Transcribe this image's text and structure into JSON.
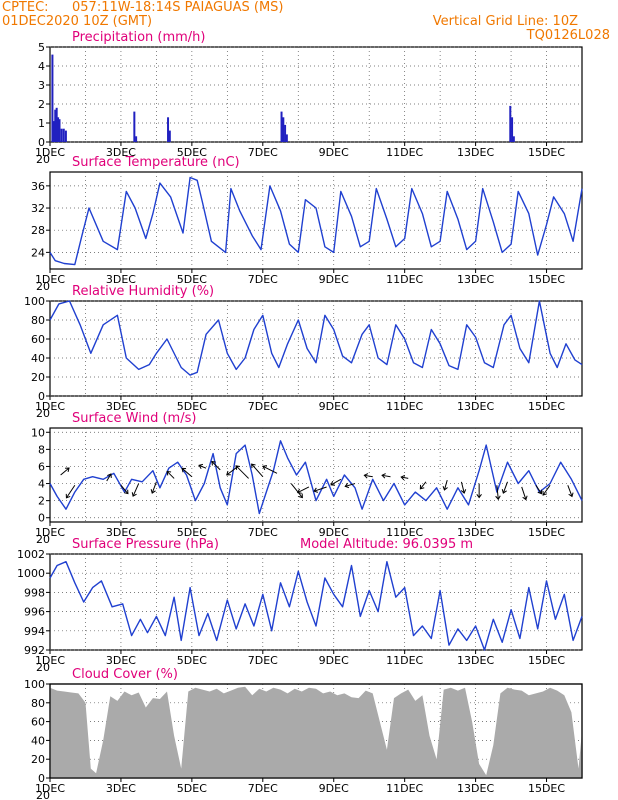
{
  "header": {
    "source": "CPTEC:",
    "location": "057:11W-18:14S  PAIAGUAS (MS)",
    "init_time": "01DEC2020 10Z (GMT)",
    "grid_note": "Vertical Grid Line: 10Z",
    "code": "TQ0126L028"
  },
  "colors": {
    "header": "#f07800",
    "title": "#e0007a",
    "line": "#2040d0",
    "bar": "#2020c0",
    "cloud": "#aaaaaa"
  },
  "x_ticks": [
    "1DEC",
    "3DEC",
    "5DEC",
    "7DEC",
    "9DEC",
    "11DEC",
    "13DEC",
    "15DEC"
  ],
  "x_tick_sub": "20",
  "chart_data": [
    {
      "id": "precipitation",
      "type": "bar",
      "title": "Precipitation (mm/h)",
      "xlabel": "",
      "ylabel": "",
      "ylim": [
        0,
        5
      ],
      "yticks": [
        "0",
        "1",
        "2",
        "3",
        "4",
        "5"
      ],
      "x_unit": "days since 01DEC2020 10Z",
      "x": [
        0.04,
        0.08,
        0.12,
        0.16,
        0.2,
        0.24,
        0.3,
        0.36,
        0.42,
        2.35,
        2.4,
        3.3,
        3.35,
        6.5,
        6.55,
        6.6,
        6.65,
        12.95,
        13.0,
        13.05
      ],
      "values": [
        4.6,
        1.1,
        1.7,
        1.8,
        1.3,
        1.2,
        0.7,
        0.7,
        0.6,
        1.6,
        0.3,
        1.3,
        0.6,
        1.6,
        1.3,
        0.9,
        0.4,
        1.9,
        1.3,
        0.3
      ],
      "grid": true
    },
    {
      "id": "temperature",
      "type": "line",
      "title": "Surface Temperature (nC)",
      "ylim": [
        21,
        38.5
      ],
      "yticks": [
        "24",
        "28",
        "32",
        "36"
      ],
      "series": [
        {
          "x": [
            0,
            0.15,
            0.4,
            0.7,
            0.9,
            1.1,
            1.5,
            1.9,
            2.15,
            2.4,
            2.7,
            2.9,
            3.1,
            3.4,
            3.75,
            3.95,
            4.15,
            4.3,
            4.55,
            4.95,
            5.1,
            5.35,
            5.7,
            5.95,
            6.2,
            6.5,
            6.75,
            7.0,
            7.2,
            7.5,
            7.75,
            8.0,
            8.2,
            8.5,
            8.75,
            9.0,
            9.2,
            9.5,
            9.75,
            10.0,
            10.2,
            10.5,
            10.75,
            11.0,
            11.2,
            11.5,
            11.75,
            12.0,
            12.2,
            12.5,
            12.75,
            13.0,
            13.2,
            13.5,
            13.75,
            14.0,
            14.2,
            14.5,
            14.75,
            15.0
          ],
          "values": [
            24,
            22.5,
            22.0,
            21.8,
            27.0,
            32.0,
            26.0,
            24.5,
            35.0,
            32.0,
            26.5,
            31.0,
            36.5,
            34.0,
            27.5,
            37.5,
            37.0,
            33.0,
            26.0,
            24.0,
            35.5,
            31.5,
            27.0,
            24.5,
            36.0,
            31.5,
            25.5,
            24.0,
            33.5,
            32.0,
            25.0,
            24.0,
            35.0,
            30.5,
            25.0,
            26.0,
            35.5,
            30.0,
            25.0,
            26.5,
            35.5,
            31.0,
            25.0,
            26.0,
            35.0,
            30.0,
            24.5,
            26.0,
            35.5,
            29.5,
            24.0,
            25.5,
            35.0,
            31.0,
            23.5,
            29.0,
            34.0,
            31.0,
            26.0,
            35.5
          ]
        }
      ],
      "grid": true
    },
    {
      "id": "humidity",
      "type": "line",
      "title": "Relative Humidity (%)",
      "ylim": [
        0,
        100
      ],
      "yticks": [
        "0",
        "20",
        "40",
        "60",
        "80",
        "100"
      ],
      "series": [
        {
          "x": [
            0,
            0.25,
            0.55,
            0.85,
            1.15,
            1.5,
            1.9,
            2.15,
            2.5,
            2.8,
            3.0,
            3.3,
            3.7,
            3.95,
            4.15,
            4.4,
            4.75,
            5.0,
            5.25,
            5.5,
            5.75,
            6.0,
            6.25,
            6.45,
            6.7,
            7.0,
            7.25,
            7.5,
            7.75,
            8.0,
            8.25,
            8.5,
            8.8,
            9.0,
            9.25,
            9.5,
            9.75,
            10.0,
            10.25,
            10.5,
            10.75,
            11.0,
            11.25,
            11.5,
            11.75,
            12.0,
            12.25,
            12.5,
            12.8,
            13.0,
            13.25,
            13.5,
            13.8,
            14.1,
            14.3,
            14.55,
            14.8,
            15.0
          ],
          "values": [
            80,
            97,
            100,
            75,
            45,
            75,
            85,
            40,
            28,
            33,
            45,
            60,
            30,
            22,
            25,
            65,
            80,
            45,
            28,
            40,
            70,
            85,
            45,
            30,
            55,
            80,
            50,
            35,
            85,
            70,
            42,
            35,
            65,
            75,
            40,
            33,
            75,
            60,
            35,
            30,
            70,
            55,
            32,
            28,
            75,
            62,
            35,
            30,
            75,
            85,
            50,
            35,
            100,
            45,
            30,
            55,
            38,
            33
          ]
        }
      ],
      "grid": true
    },
    {
      "id": "wind",
      "type": "line",
      "title": "Surface Wind (m/s)",
      "ylim": [
        -0.5,
        10.5
      ],
      "yticks": [
        "0",
        "2",
        "4",
        "6",
        "8",
        "10"
      ],
      "series": [
        {
          "x": [
            0,
            0.2,
            0.45,
            0.7,
            0.95,
            1.2,
            1.5,
            1.8,
            2.1,
            2.3,
            2.6,
            2.9,
            3.1,
            3.35,
            3.6,
            3.85,
            4.1,
            4.35,
            4.6,
            4.8,
            5.0,
            5.25,
            5.5,
            5.7,
            5.9,
            6.1,
            6.3,
            6.5,
            6.7,
            6.95,
            7.2,
            7.5,
            7.8,
            8.0,
            8.3,
            8.6,
            8.8,
            9.1,
            9.4,
            9.7,
            10.0,
            10.3,
            10.6,
            10.9,
            11.2,
            11.5,
            11.8,
            12.1,
            12.3,
            12.6,
            12.9,
            13.2,
            13.5,
            13.8,
            14.1,
            14.4,
            14.7,
            15.0
          ],
          "values": [
            4,
            2.5,
            1.0,
            3.0,
            4.5,
            4.8,
            4.5,
            5.2,
            3.0,
            4.5,
            4.2,
            5.5,
            3.5,
            5.8,
            6.5,
            5.0,
            2.0,
            4.0,
            7.5,
            3.5,
            1.5,
            7.5,
            8.5,
            5.0,
            0.5,
            3.0,
            5.5,
            9.0,
            7.0,
            5.0,
            6.5,
            2.0,
            4.5,
            2.5,
            5.0,
            3.5,
            1.0,
            4.5,
            2.0,
            4.0,
            1.5,
            3.0,
            2.0,
            3.5,
            1.0,
            3.5,
            1.5,
            5.5,
            8.5,
            3.0,
            6.5,
            4.0,
            5.5,
            3.0,
            4.0,
            6.5,
            4.5,
            2.0
          ]
        }
      ],
      "vectors": {
        "x": [
          0.3,
          0.7,
          1.6,
          2.0,
          2.5,
          3.0,
          3.5,
          4.0,
          4.4,
          4.8,
          5.3,
          5.6,
          6.0,
          6.4,
          6.8,
          7.3,
          7.8,
          8.2,
          8.6,
          9.1,
          9.6,
          10.1,
          10.6,
          11.2,
          11.6,
          12.1,
          12.6,
          12.9,
          13.3,
          13.7,
          14.1,
          14.6
        ],
        "dx": [
          0.6,
          -0.6,
          0.3,
          0.5,
          -0.4,
          -0.3,
          -0.5,
          -0.7,
          -0.5,
          -0.6,
          -0.8,
          -0.9,
          -0.8,
          -1.0,
          0.8,
          -0.8,
          -0.9,
          -0.7,
          -0.7,
          -0.6,
          -0.6,
          -0.5,
          -0.4,
          -0.2,
          0.2,
          0.0,
          0.1,
          -0.3,
          0.3,
          0.4,
          -0.5,
          0.3
        ],
        "dy": [
          0.5,
          -0.9,
          0.5,
          -0.6,
          -0.9,
          -0.8,
          0.5,
          0.6,
          0.2,
          0.6,
          -0.6,
          0.9,
          0.9,
          0.5,
          -1.0,
          -0.4,
          -0.3,
          -0.4,
          -0.2,
          0.1,
          0.1,
          0.1,
          -0.5,
          -0.7,
          -0.8,
          -1.0,
          -1.0,
          -0.8,
          -0.9,
          -0.6,
          -0.7,
          -0.8
        ],
        "base": [
          5.0,
          3.8,
          4.3,
          3.8,
          4.0,
          4.2,
          4.6,
          4.8,
          5.8,
          5.6,
          6.0,
          4.6,
          4.8,
          5.2,
          4.0,
          3.6,
          3.6,
          4.5,
          4.0,
          4.8,
          4.8,
          4.6,
          4.2,
          4.4,
          4.2,
          4.0,
          3.8,
          4.2,
          3.6,
          3.8,
          3.8,
          3.8
        ]
      },
      "grid": true
    },
    {
      "id": "pressure",
      "type": "line",
      "title": "Surface Pressure (hPa)",
      "annotation": "Model Altitude: 96.0395 m",
      "ylim": [
        992,
        1002
      ],
      "yticks": [
        "992",
        "994",
        "996",
        "998",
        "1000",
        "1002"
      ],
      "series": [
        {
          "x": [
            0,
            0.2,
            0.45,
            0.7,
            0.95,
            1.2,
            1.45,
            1.75,
            2.05,
            2.3,
            2.55,
            2.75,
            3.0,
            3.25,
            3.5,
            3.7,
            3.95,
            4.2,
            4.45,
            4.7,
            5.0,
            5.25,
            5.5,
            5.75,
            6.0,
            6.25,
            6.5,
            6.75,
            7.0,
            7.25,
            7.5,
            7.75,
            8.0,
            8.25,
            8.5,
            8.75,
            9.0,
            9.25,
            9.5,
            9.75,
            10.0,
            10.25,
            10.5,
            10.75,
            11.0,
            11.25,
            11.5,
            11.75,
            12.0,
            12.25,
            12.5,
            12.75,
            13.0,
            13.25,
            13.5,
            13.75,
            14.0,
            14.25,
            14.5,
            14.75,
            15.0
          ],
          "values": [
            999.5,
            1000.8,
            1001.2,
            999.0,
            997.0,
            998.5,
            999.2,
            996.5,
            996.8,
            993.5,
            995.2,
            993.8,
            995.5,
            993.5,
            997.5,
            993.0,
            998.5,
            993.5,
            995.8,
            993.0,
            997.2,
            994.2,
            996.8,
            994.5,
            997.8,
            994.0,
            999.0,
            996.5,
            1000.2,
            997.0,
            994.5,
            999.5,
            997.8,
            996.5,
            1000.8,
            995.5,
            998.2,
            996.0,
            1001.2,
            997.5,
            998.5,
            993.5,
            994.5,
            993.2,
            998.2,
            992.5,
            994.2,
            993.0,
            994.5,
            992.0,
            995.2,
            992.8,
            996.2,
            993.2,
            998.5,
            994.2,
            999.2,
            995.2,
            997.8,
            993.0,
            995.5
          ]
        }
      ],
      "grid": true
    },
    {
      "id": "cloud",
      "type": "area",
      "title": "Cloud Cover (%)",
      "ylim": [
        0,
        100
      ],
      "yticks": [
        "0",
        "20",
        "40",
        "60",
        "80",
        "100"
      ],
      "series": [
        {
          "x": [
            0,
            0.2,
            0.4,
            0.6,
            0.8,
            1.0,
            1.15,
            1.3,
            1.5,
            1.7,
            1.9,
            2.1,
            2.3,
            2.5,
            2.7,
            2.9,
            3.1,
            3.3,
            3.5,
            3.7,
            3.9,
            4.1,
            4.3,
            4.5,
            4.7,
            4.9,
            5.1,
            5.3,
            5.5,
            5.7,
            5.9,
            6.1,
            6.3,
            6.5,
            6.7,
            6.9,
            7.1,
            7.3,
            7.5,
            7.7,
            7.9,
            8.1,
            8.3,
            8.5,
            8.7,
            8.9,
            9.1,
            9.3,
            9.5,
            9.7,
            9.9,
            10.1,
            10.3,
            10.5,
            10.7,
            10.9,
            11.1,
            11.3,
            11.5,
            11.7,
            11.9,
            12.1,
            12.3,
            12.5,
            12.7,
            12.9,
            13.1,
            13.3,
            13.5,
            13.7,
            13.9,
            14.1,
            14.3,
            14.5,
            14.7,
            14.9,
            15.0
          ],
          "values": [
            96,
            93,
            92,
            91,
            90,
            80,
            10,
            5,
            40,
            87,
            82,
            92,
            88,
            91,
            75,
            85,
            84,
            92,
            45,
            10,
            92,
            96,
            94,
            92,
            95,
            90,
            93,
            96,
            97,
            88,
            95,
            92,
            96,
            94,
            90,
            95,
            92,
            96,
            95,
            90,
            92,
            88,
            90,
            86,
            85,
            93,
            90,
            60,
            30,
            85,
            90,
            94,
            82,
            88,
            45,
            20,
            94,
            96,
            93,
            96,
            60,
            15,
            3,
            35,
            90,
            96,
            94,
            93,
            88,
            90,
            92,
            96,
            93,
            88,
            70,
            10,
            50
          ]
        }
      ],
      "grid": true
    }
  ]
}
